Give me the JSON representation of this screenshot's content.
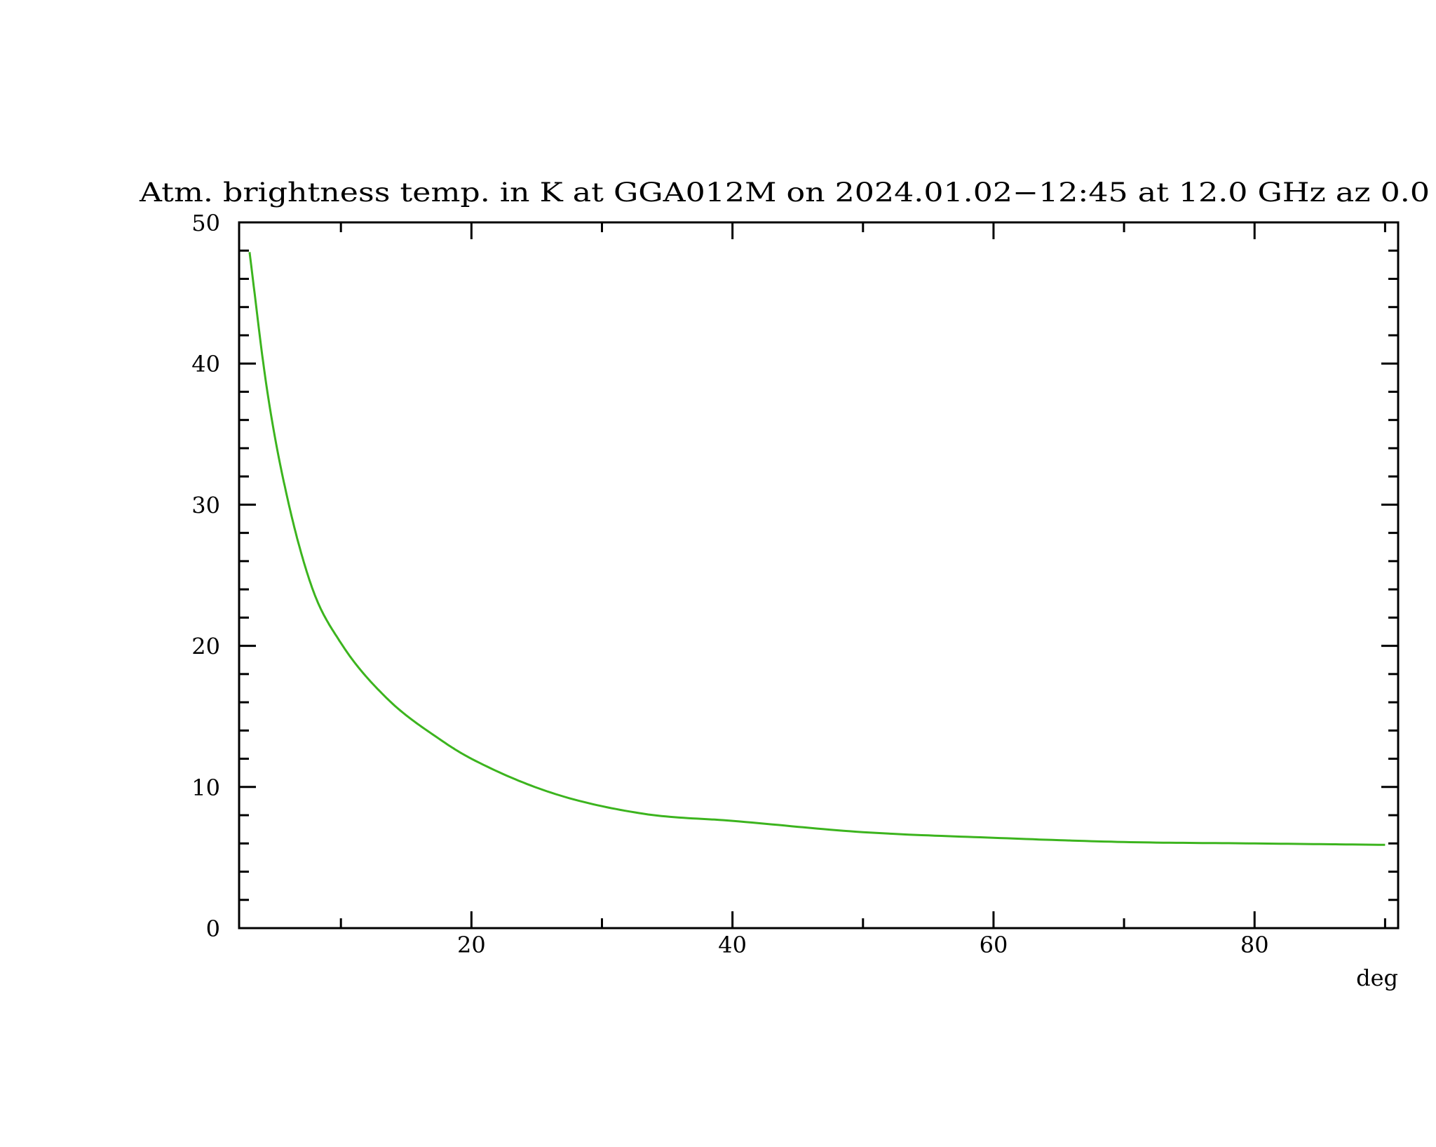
{
  "chart_data": {
    "type": "line",
    "title": "Atm. brightness temp. in K at GGA012M  on 2024.01.02−12:45 at  12.0 GHz az    0.0",
    "xlabel": "deg",
    "ylabel": "",
    "xlim": [
      2.2,
      91
    ],
    "ylim": [
      0,
      50
    ],
    "x_ticks": [
      20,
      40,
      60,
      80
    ],
    "x_tick_labels": [
      "20",
      "40",
      "60",
      "80"
    ],
    "x_minor_step": 10,
    "y_ticks": [
      0,
      10,
      20,
      30,
      40,
      50
    ],
    "y_tick_labels": [
      "0",
      "10",
      "20",
      "30",
      "40",
      "50"
    ],
    "y_minor_step": 2,
    "grid": false,
    "series": [
      {
        "color": "#3cb41e",
        "x": [
          3,
          4.3,
          5.7,
          7.8,
          10,
          13.5,
          17.7,
          20,
          26.1,
          33.2,
          40,
          50,
          60,
          70,
          80,
          90
        ],
        "y": [
          47.9,
          38.4,
          31.3,
          24.1,
          20.2,
          16.3,
          13.3,
          12.0,
          9.6,
          8.1,
          7.6,
          6.8,
          6.4,
          6.1,
          6.0,
          5.9
        ]
      }
    ]
  }
}
